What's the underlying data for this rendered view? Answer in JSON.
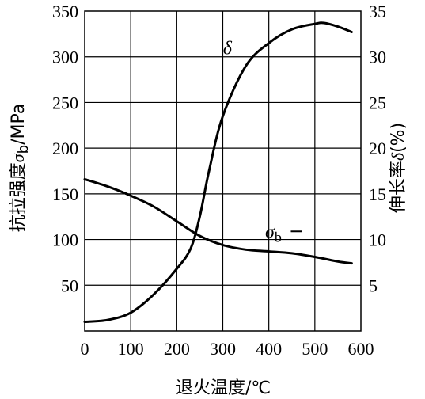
{
  "chart_data": {
    "type": "line",
    "x_ticks": [
      0,
      100,
      200,
      300,
      400,
      500,
      600
    ],
    "xlim": [
      0,
      600
    ],
    "y_left_ticks": [
      50,
      100,
      150,
      200,
      250,
      300,
      350
    ],
    "y_left_lim": [
      0,
      350
    ],
    "y_right_ticks": [
      5,
      10,
      15,
      20,
      25,
      30,
      35
    ],
    "y_right_lim": [
      0,
      35
    ],
    "xlabel": "退火温度/℃",
    "ylabel_left_prefix": "抗拉强度",
    "ylabel_left_symbol": "σ",
    "ylabel_left_sub": "b",
    "ylabel_left_unit": "/MPa",
    "ylabel_right_prefix": "伸长率",
    "ylabel_right_symbol": "δ",
    "ylabel_right_unit": "(%)",
    "grid": true,
    "series": [
      {
        "name": "σb",
        "axis": "left",
        "x": [
          0,
          50,
          100,
          150,
          200,
          250,
          300,
          350,
          400,
          450,
          500,
          550,
          580
        ],
        "values": [
          166,
          158,
          148,
          136,
          120,
          104,
          94,
          89,
          87,
          85,
          81,
          76,
          74
        ]
      },
      {
        "name": "δ",
        "axis": "right",
        "x": [
          0,
          50,
          100,
          150,
          200,
          230,
          250,
          270,
          300,
          350,
          400,
          450,
          500,
          520,
          550,
          580
        ],
        "values": [
          1,
          1.2,
          2,
          4,
          6.8,
          9,
          12.5,
          17.5,
          23.5,
          29,
          31.5,
          33,
          33.6,
          33.7,
          33.3,
          32.7
        ]
      }
    ],
    "annotations": [
      {
        "symbol": "δ",
        "sub": "",
        "x": 310,
        "y_right": 30.3
      },
      {
        "symbol": "σ",
        "sub": "b",
        "x": 410,
        "y_left": 102
      }
    ]
  }
}
